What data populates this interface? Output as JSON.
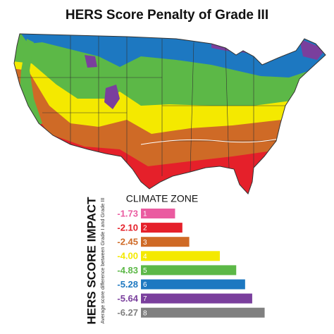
{
  "title": "HERS Score Penalty of Grade III",
  "chart_data": {
    "type": "bar",
    "orientation": "horizontal",
    "title": "CLIMATE ZONE",
    "y_label": "HERS SCORE IMPACT",
    "subtitle": "Average score difference between Grade I and Grade III",
    "categories": [
      "1",
      "2",
      "3",
      "4",
      "5",
      "6",
      "7",
      "8"
    ],
    "values": [
      -1.73,
      -2.1,
      -2.45,
      -4.0,
      -4.83,
      -5.28,
      -5.64,
      -6.27
    ],
    "value_labels": [
      "-1.73",
      "-2.10",
      "-2.45",
      "-4.00",
      "-4.83",
      "-5.28",
      "-5.64",
      "-6.27"
    ],
    "colors": [
      "#ea5ba0",
      "#e5202a",
      "#cf6a26",
      "#f4e900",
      "#5cb847",
      "#1d78c1",
      "#7a3f9d",
      "#808080"
    ]
  }
}
